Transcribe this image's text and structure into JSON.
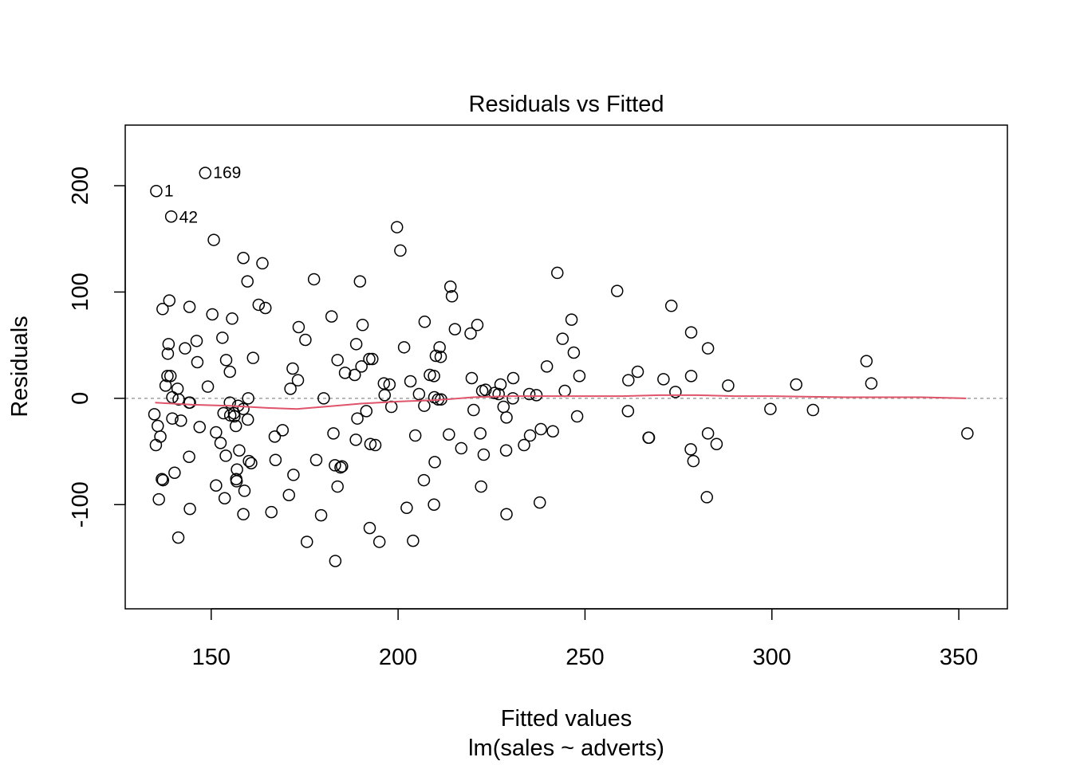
{
  "chart_data": {
    "type": "scatter",
    "title": "Residuals vs Fitted",
    "xlabel": "Fitted values",
    "sublabel": "lm(sales ~ adverts)",
    "ylabel": "Residuals",
    "xlim": [
      127,
      363
    ],
    "ylim": [
      -198,
      257
    ],
    "xticks": [
      150,
      200,
      250,
      300,
      350
    ],
    "yticks": [
      -100,
      0,
      100,
      200
    ],
    "xtick_labels": [
      "150",
      "200",
      "250",
      "300",
      "350"
    ],
    "ytick_labels": [
      "-100",
      "0",
      "100",
      "200"
    ],
    "grid": false,
    "reference_line_y": 0,
    "colors": {
      "points": "#000000",
      "smooth": "#DF536B",
      "refline": "#a0a0a0"
    },
    "labeled_points": [
      {
        "label": "169",
        "x": 148.4,
        "y": 212.5
      },
      {
        "label": "1",
        "x": 135.3,
        "y": 195.3
      },
      {
        "label": "42",
        "x": 139.3,
        "y": 170.6
      }
    ],
    "points": [
      [
        135.3,
        195
      ],
      [
        148.4,
        212
      ],
      [
        139.3,
        171
      ],
      [
        150.7,
        149
      ],
      [
        199.7,
        161
      ],
      [
        200.6,
        139
      ],
      [
        158.6,
        132
      ],
      [
        163.7,
        127
      ],
      [
        177.5,
        112
      ],
      [
        159.7,
        110
      ],
      [
        189.8,
        110
      ],
      [
        214.0,
        105
      ],
      [
        242.6,
        118
      ],
      [
        214.4,
        96
      ],
      [
        258.6,
        101
      ],
      [
        273.1,
        87
      ],
      [
        138.8,
        92
      ],
      [
        137.0,
        84
      ],
      [
        144.2,
        86
      ],
      [
        155.6,
        75
      ],
      [
        150.3,
        79
      ],
      [
        162.7,
        88
      ],
      [
        164.5,
        85
      ],
      [
        182.2,
        77
      ],
      [
        190.5,
        69
      ],
      [
        207.1,
        72
      ],
      [
        246.4,
        74
      ],
      [
        221.2,
        69
      ],
      [
        215.2,
        65
      ],
      [
        219.4,
        61
      ],
      [
        278.4,
        62
      ],
      [
        173.4,
        67
      ],
      [
        175.2,
        55
      ],
      [
        153.0,
        57
      ],
      [
        146.1,
        54
      ],
      [
        138.6,
        51
      ],
      [
        143.0,
        47
      ],
      [
        138.4,
        42
      ],
      [
        154.0,
        36
      ],
      [
        161.2,
        38
      ],
      [
        146.3,
        34
      ],
      [
        155.0,
        25
      ],
      [
        171.8,
        28
      ],
      [
        183.8,
        36
      ],
      [
        188.8,
        51
      ],
      [
        192.3,
        37
      ],
      [
        193.1,
        37
      ],
      [
        201.6,
        48
      ],
      [
        211.1,
        48
      ],
      [
        210.1,
        40
      ],
      [
        211.4,
        39
      ],
      [
        244.0,
        56
      ],
      [
        247.0,
        43
      ],
      [
        282.9,
        47
      ],
      [
        239.8,
        30
      ],
      [
        138.3,
        21
      ],
      [
        139.1,
        21
      ],
      [
        137.8,
        12
      ],
      [
        149.1,
        11
      ],
      [
        141.0,
        9
      ],
      [
        173.2,
        17
      ],
      [
        171.2,
        9
      ],
      [
        185.8,
        24
      ],
      [
        188.4,
        22
      ],
      [
        190.2,
        30
      ],
      [
        196.2,
        14
      ],
      [
        197.7,
        13
      ],
      [
        203.3,
        16
      ],
      [
        208.5,
        22
      ],
      [
        209.6,
        21
      ],
      [
        219.7,
        19
      ],
      [
        230.8,
        19
      ],
      [
        248.5,
        21
      ],
      [
        264.1,
        25
      ],
      [
        261.6,
        17
      ],
      [
        271.0,
        18
      ],
      [
        278.4,
        21
      ],
      [
        244.6,
        7
      ],
      [
        222.5,
        7
      ],
      [
        223.4,
        8
      ],
      [
        226.9,
        4
      ],
      [
        227.4,
        13
      ],
      [
        235.1,
        4
      ],
      [
        237.0,
        3
      ],
      [
        274.2,
        6
      ],
      [
        288.3,
        12
      ],
      [
        306.5,
        13
      ],
      [
        325.3,
        35
      ],
      [
        326.6,
        14
      ],
      [
        139.6,
        1
      ],
      [
        141.3,
        -1
      ],
      [
        144.1,
        -4
      ],
      [
        144.3,
        -4
      ],
      [
        159.9,
        0
      ],
      [
        180.1,
        0
      ],
      [
        205.6,
        4
      ],
      [
        196.4,
        3
      ],
      [
        209.7,
        1
      ],
      [
        210.7,
        -1
      ],
      [
        211.5,
        -1
      ],
      [
        230.7,
        0
      ],
      [
        225.8,
        5
      ],
      [
        299.6,
        -10
      ],
      [
        311.0,
        -11
      ],
      [
        261.5,
        -12
      ],
      [
        220.2,
        -11
      ],
      [
        222.0,
        -33
      ],
      [
        228.2,
        -8
      ],
      [
        229.0,
        -18
      ],
      [
        222.9,
        -53
      ],
      [
        228.9,
        -49
      ],
      [
        233.7,
        -44
      ],
      [
        235.3,
        -35
      ],
      [
        238.2,
        -29
      ],
      [
        241.4,
        -31
      ],
      [
        247.9,
        -17
      ],
      [
        267.0,
        -37
      ],
      [
        278.3,
        -48
      ],
      [
        279.0,
        -59
      ],
      [
        282.9,
        -33
      ],
      [
        285.2,
        -43
      ],
      [
        352.3,
        -33
      ],
      [
        134.8,
        -15
      ],
      [
        135.2,
        -44
      ],
      [
        135.7,
        -26
      ],
      [
        136.4,
        -36
      ],
      [
        136.8,
        -76
      ],
      [
        136.0,
        -95
      ],
      [
        137.1,
        -77
      ],
      [
        139.6,
        -19
      ],
      [
        140.2,
        -70
      ],
      [
        141.9,
        -21
      ],
      [
        144.1,
        -55
      ],
      [
        144.3,
        -104
      ],
      [
        141.2,
        -131
      ],
      [
        146.9,
        -27
      ],
      [
        151.3,
        -32
      ],
      [
        151.3,
        -82
      ],
      [
        152.5,
        -42
      ],
      [
        153.3,
        -14
      ],
      [
        153.9,
        -54
      ],
      [
        153.6,
        -94
      ],
      [
        155.1,
        -16
      ],
      [
        156.1,
        -14
      ],
      [
        156.2,
        -17
      ],
      [
        156.6,
        -26
      ],
      [
        156.9,
        -67
      ],
      [
        156.7,
        -76
      ],
      [
        156.8,
        -78
      ],
      [
        157.2,
        -7
      ],
      [
        157.5,
        -49
      ],
      [
        158.6,
        -10
      ],
      [
        158.6,
        -109
      ],
      [
        158.9,
        -87
      ],
      [
        159.8,
        -20
      ],
      [
        160.1,
        -59
      ],
      [
        160.7,
        -61
      ],
      [
        155.0,
        -4
      ],
      [
        166.1,
        -107
      ],
      [
        167.0,
        -36
      ],
      [
        167.2,
        -58
      ],
      [
        169.1,
        -30
      ],
      [
        170.8,
        -91
      ],
      [
        172.0,
        -72
      ],
      [
        175.6,
        -135
      ],
      [
        178.1,
        -58
      ],
      [
        179.4,
        -110
      ],
      [
        182.7,
        -33
      ],
      [
        183.1,
        -63
      ],
      [
        183.8,
        -83
      ],
      [
        184.6,
        -65
      ],
      [
        185.0,
        -64
      ],
      [
        183.2,
        -153
      ],
      [
        188.7,
        -39
      ],
      [
        189.1,
        -19
      ],
      [
        191.5,
        -12
      ],
      [
        192.4,
        -122
      ],
      [
        192.6,
        -43
      ],
      [
        193.9,
        -44
      ],
      [
        195.0,
        -135
      ],
      [
        198.2,
        -8
      ],
      [
        202.3,
        -103
      ],
      [
        204.0,
        -134
      ],
      [
        204.6,
        -35
      ],
      [
        206.9,
        -77
      ],
      [
        207.0,
        -7
      ],
      [
        209.6,
        -100
      ],
      [
        209.8,
        -60
      ],
      [
        213.6,
        -34
      ],
      [
        216.9,
        -47
      ],
      [
        222.2,
        -83
      ],
      [
        229.0,
        -109
      ],
      [
        237.9,
        -98
      ],
      [
        267.1,
        -37
      ],
      [
        282.6,
        -93
      ]
    ],
    "smooth_line": [
      [
        135,
        -4
      ],
      [
        145,
        -6
      ],
      [
        155,
        -7
      ],
      [
        165,
        -9
      ],
      [
        173,
        -10
      ],
      [
        180,
        -8
      ],
      [
        190,
        -5
      ],
      [
        200,
        -3
      ],
      [
        208,
        -2
      ],
      [
        213,
        -1
      ],
      [
        220,
        1
      ],
      [
        230,
        2
      ],
      [
        240,
        2
      ],
      [
        250,
        2
      ],
      [
        260,
        2
      ],
      [
        270,
        3
      ],
      [
        280,
        3
      ],
      [
        290,
        2
      ],
      [
        300,
        2
      ],
      [
        320,
        1
      ],
      [
        340,
        1
      ],
      [
        352,
        0
      ]
    ]
  }
}
